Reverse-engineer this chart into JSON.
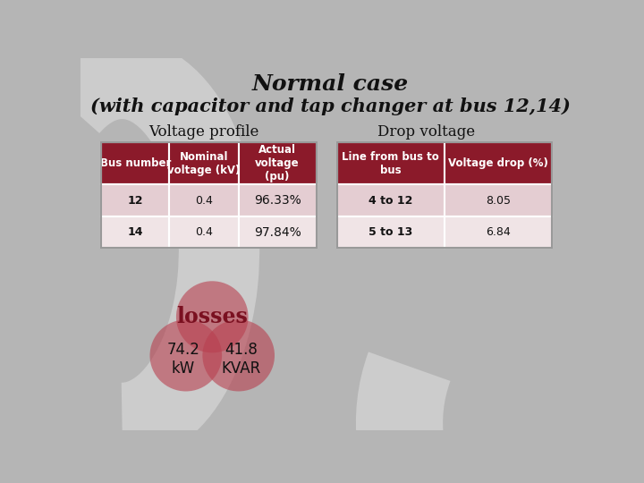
{
  "title_line1": "Normal case",
  "title_line2": "(with capacitor and tap changer at bus 12,14)",
  "bg_color": "#b5b5b5",
  "title_color": "#111111",
  "section1_title": "Voltage profile",
  "section2_title": "Drop voltage",
  "table1_header": [
    "Bus number",
    "Nominal\nvoltage (kV)",
    "Actual\nvoltage\n(pu)"
  ],
  "table1_rows": [
    [
      "12",
      "0.4",
      "96.33%"
    ],
    [
      "14",
      "0.4",
      "97.84%"
    ]
  ],
  "table2_header": [
    "Line from bus to\nbus",
    "Voltage drop (%)"
  ],
  "table2_rows": [
    [
      "4 to 12",
      "8.05"
    ],
    [
      "5 to 13",
      "6.84"
    ]
  ],
  "header_bg": "#8b1a2a",
  "header_fg": "#ffffff",
  "row1_bg": "#e4cdd2",
  "row2_bg": "#f0e4e6",
  "losses_label": "losses",
  "loss_kw": "74.2\nkW",
  "loss_kvar": "41.8\nKVAR",
  "circle_color": "#b8404f",
  "circle_alpha": 0.6,
  "dec_arc_color": "#cccccc"
}
